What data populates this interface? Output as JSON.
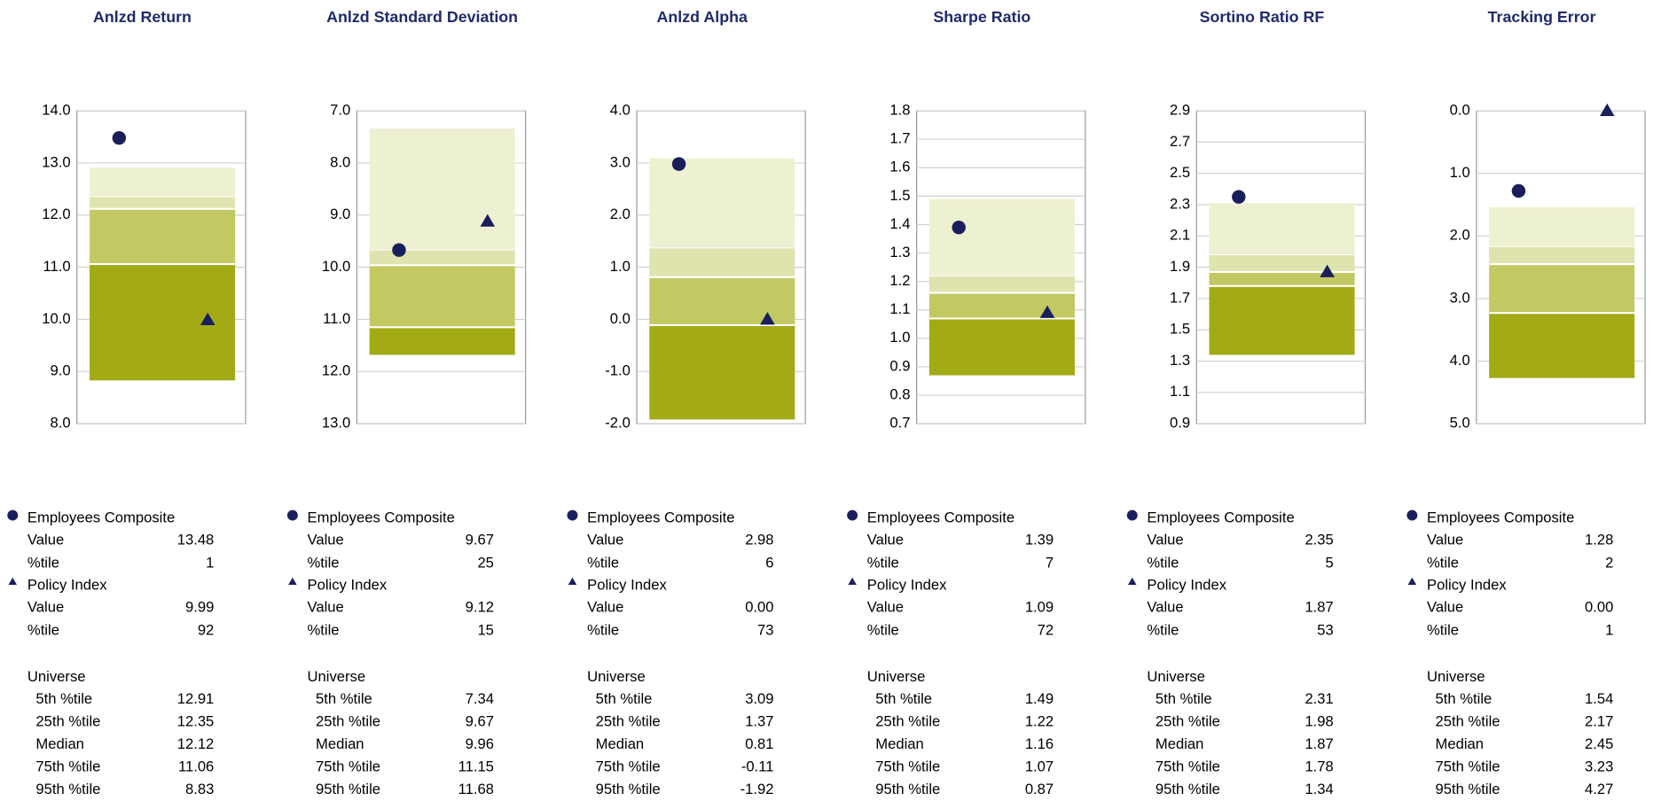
{
  "labels": {
    "value": "Value",
    "pctile": "%tile",
    "universe": "Universe",
    "universe_rows": [
      "5th %tile",
      "25th %tile",
      "Median",
      "75th %tile",
      "95th %tile"
    ]
  },
  "band_colors": [
    "#eef0d2",
    "#dfe3ad",
    "#c2c862",
    "#a2aa16"
  ],
  "chart_data": [
    {
      "type": "percentile",
      "title": "Anlzd Return",
      "ylim": [
        8,
        14
      ],
      "yticks": [
        {
          "value": 8,
          "label": "8.0"
        },
        {
          "value": 9,
          "label": "9.0"
        },
        {
          "value": 10,
          "label": "10.0"
        },
        {
          "value": 11,
          "label": "11.0"
        },
        {
          "value": 12,
          "label": "12.0"
        },
        {
          "value": 13,
          "label": "13.0"
        },
        {
          "value": 14,
          "label": "14.0"
        }
      ],
      "series": [
        {
          "name": "Employees Composite",
          "marker": "circle",
          "color": "#1a1f5c",
          "value": 13.48,
          "percentile": 1
        },
        {
          "name": "Policy Index",
          "marker": "triangle",
          "color": "#1a1f5c",
          "value": 9.99,
          "percentile": 92
        }
      ],
      "universe": [
        12.91,
        12.35,
        12.12,
        11.06,
        8.83
      ]
    },
    {
      "type": "percentile",
      "title": "Anlzd Standard Deviation",
      "ylim": [
        13,
        7
      ],
      "yticks": [
        {
          "value": 7,
          "label": "7.0"
        },
        {
          "value": 8,
          "label": "8.0"
        },
        {
          "value": 9,
          "label": "9.0"
        },
        {
          "value": 10,
          "label": "10.0"
        },
        {
          "value": 11,
          "label": "11.0"
        },
        {
          "value": 12,
          "label": "12.0"
        },
        {
          "value": 13,
          "label": "13.0"
        }
      ],
      "series": [
        {
          "name": "Employees Composite",
          "marker": "circle",
          "color": "#1a1f5c",
          "value": 9.67,
          "percentile": 25
        },
        {
          "name": "Policy Index",
          "marker": "triangle",
          "color": "#1a1f5c",
          "value": 9.12,
          "percentile": 15
        }
      ],
      "universe": [
        7.34,
        9.67,
        9.96,
        11.15,
        11.68
      ]
    },
    {
      "type": "percentile",
      "title": "Anlzd Alpha",
      "ylim": [
        -2,
        4
      ],
      "yticks": [
        {
          "value": -2,
          "label": "-2.0"
        },
        {
          "value": -1,
          "label": "-1.0"
        },
        {
          "value": 0,
          "label": "0.0"
        },
        {
          "value": 1,
          "label": "1.0"
        },
        {
          "value": 2,
          "label": "2.0"
        },
        {
          "value": 3,
          "label": "3.0"
        },
        {
          "value": 4,
          "label": "4.0"
        }
      ],
      "series": [
        {
          "name": "Employees Composite",
          "marker": "circle",
          "color": "#1a1f5c",
          "value": 2.98,
          "percentile": 6
        },
        {
          "name": "Policy Index",
          "marker": "triangle",
          "color": "#1a1f5c",
          "value": 0,
          "value_label": "0.00",
          "percentile": 73
        }
      ],
      "universe": [
        3.09,
        1.37,
        0.81,
        -0.11,
        -1.92
      ]
    },
    {
      "type": "percentile",
      "title": "Sharpe Ratio",
      "ylim": [
        0.7,
        1.8
      ],
      "yticks": [
        0.7,
        0.8,
        0.9,
        {
          "value": 1,
          "label": "1.0"
        },
        1.1,
        1.2,
        1.3,
        1.4,
        1.5,
        1.6,
        1.7,
        1.8
      ],
      "series": [
        {
          "name": "Employees Composite",
          "marker": "circle",
          "color": "#1a1f5c",
          "value": 1.39,
          "percentile": 7
        },
        {
          "name": "Policy Index",
          "marker": "triangle",
          "color": "#1a1f5c",
          "value": 1.09,
          "percentile": 72
        }
      ],
      "universe": [
        1.49,
        1.22,
        1.16,
        1.07,
        0.87
      ]
    },
    {
      "type": "percentile",
      "title": "Sortino Ratio RF",
      "ylim": [
        0.9,
        2.9
      ],
      "yticks": [
        0.9,
        1.1,
        1.3,
        1.5,
        1.7,
        1.9,
        2.1,
        2.3,
        2.5,
        2.7,
        2.9
      ],
      "series": [
        {
          "name": "Employees Composite",
          "marker": "circle",
          "color": "#1a1f5c",
          "value": 2.35,
          "percentile": 5
        },
        {
          "name": "Policy Index",
          "marker": "triangle",
          "color": "#1a1f5c",
          "value": 1.87,
          "percentile": 53
        }
      ],
      "universe": [
        2.31,
        1.98,
        1.87,
        1.78,
        1.34
      ]
    },
    {
      "type": "percentile",
      "title": "Tracking Error",
      "ylim": [
        5,
        0
      ],
      "yticks": [
        {
          "value": 0,
          "label": "0.0"
        },
        {
          "value": 1,
          "label": "1.0"
        },
        {
          "value": 2,
          "label": "2.0"
        },
        {
          "value": 3,
          "label": "3.0"
        },
        {
          "value": 4,
          "label": "4.0"
        },
        {
          "value": 5,
          "label": "5.0"
        }
      ],
      "series": [
        {
          "name": "Employees Composite",
          "marker": "circle",
          "color": "#1a1f5c",
          "value": 1.28,
          "percentile": 2
        },
        {
          "name": "Policy Index",
          "marker": "triangle",
          "color": "#1a1f5c",
          "value": 0,
          "value_label": "0.00",
          "percentile": 1
        }
      ],
      "universe": [
        1.54,
        2.17,
        2.45,
        3.23,
        4.27
      ]
    }
  ]
}
